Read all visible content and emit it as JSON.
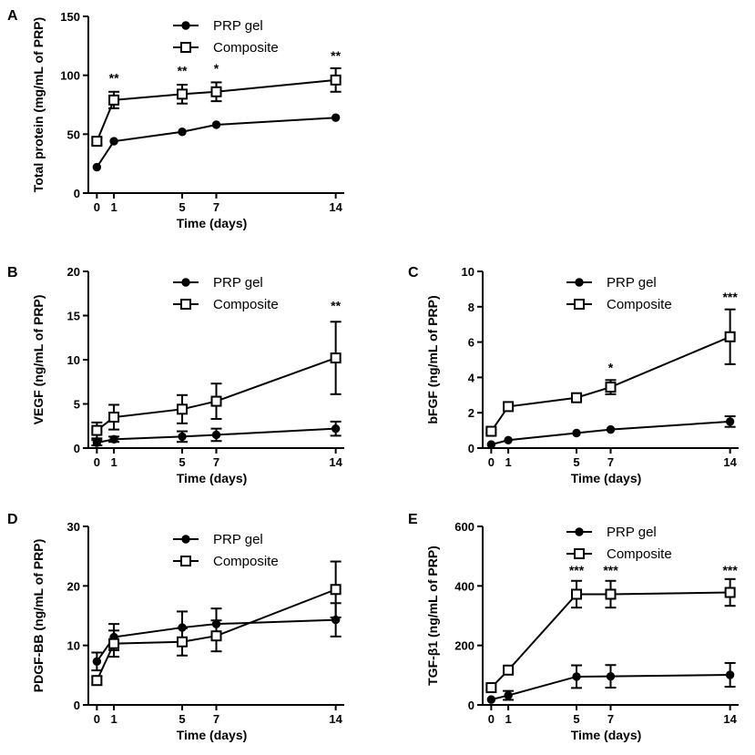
{
  "chart_data": [
    {
      "panel": "A",
      "type": "line",
      "xlabel": "Time (days)",
      "ylabel": "Total protein (mg/mL of PRP)",
      "x": [
        0,
        1,
        5,
        7,
        14
      ],
      "xticks": [
        "0",
        "1",
        "5",
        "7",
        "14"
      ],
      "xlim": [
        -0.5,
        14.5
      ],
      "ylim": [
        0,
        150
      ],
      "yticks": [
        0,
        50,
        100,
        150
      ],
      "legend_position": "top-center",
      "series": [
        {
          "name": "PRP gel",
          "marker": "circle",
          "values": [
            22,
            44,
            52,
            58,
            64
          ],
          "errors": [
            1,
            1,
            1,
            1,
            1
          ]
        },
        {
          "name": "Composite",
          "marker": "square",
          "values": [
            44,
            79,
            84,
            86,
            96
          ],
          "errors": [
            3,
            7,
            8,
            8,
            10
          ]
        }
      ],
      "significance": [
        {
          "x": 1,
          "label": "**",
          "y": 94
        },
        {
          "x": 5,
          "label": "**",
          "y": 100
        },
        {
          "x": 7,
          "label": "*",
          "y": 102
        },
        {
          "x": 14,
          "label": "**",
          "y": 113
        }
      ]
    },
    {
      "panel": "B",
      "type": "line",
      "xlabel": "Time (days)",
      "ylabel": "VEGF (ng/mL of PRP)",
      "x": [
        0,
        1,
        5,
        7,
        14
      ],
      "xticks": [
        "0",
        "1",
        "5",
        "7",
        "14"
      ],
      "xlim": [
        -0.5,
        14.5
      ],
      "ylim": [
        0,
        20
      ],
      "yticks": [
        0,
        5,
        10,
        15,
        20
      ],
      "legend_position": "top-center",
      "series": [
        {
          "name": "PRP gel",
          "marker": "circle",
          "values": [
            0.6,
            1.0,
            1.3,
            1.5,
            2.2
          ],
          "errors": [
            0.3,
            0.3,
            0.6,
            0.7,
            0.8
          ]
        },
        {
          "name": "Composite",
          "marker": "square",
          "values": [
            2.0,
            3.5,
            4.4,
            5.3,
            10.2
          ],
          "errors": [
            0.9,
            1.4,
            1.6,
            2.0,
            4.1
          ]
        }
      ],
      "significance": [
        {
          "x": 14,
          "label": "**",
          "y": 15.6
        }
      ]
    },
    {
      "panel": "C",
      "type": "line",
      "xlabel": "Time (days)",
      "ylabel": "bFGF (ng/mL of PRP)",
      "x": [
        0,
        1,
        5,
        7,
        14
      ],
      "xticks": [
        "0",
        "1",
        "5",
        "7",
        "14"
      ],
      "xlim": [
        -0.5,
        14.5
      ],
      "ylim": [
        0,
        10
      ],
      "yticks": [
        0,
        2,
        4,
        6,
        8,
        10
      ],
      "legend_position": "top-center",
      "series": [
        {
          "name": "PRP gel",
          "marker": "circle",
          "values": [
            0.2,
            0.45,
            0.85,
            1.05,
            1.5
          ],
          "errors": [
            0.05,
            0.05,
            0.05,
            0.05,
            0.3
          ]
        },
        {
          "name": "Composite",
          "marker": "square",
          "values": [
            0.95,
            2.35,
            2.85,
            3.45,
            6.3
          ],
          "errors": [
            0.1,
            0.15,
            0.2,
            0.4,
            1.55
          ]
        }
      ],
      "significance": [
        {
          "x": 7,
          "label": "*",
          "y": 4.3
        },
        {
          "x": 14,
          "label": "***",
          "y": 8.3
        }
      ]
    },
    {
      "panel": "D",
      "type": "line",
      "xlabel": "Time (days)",
      "ylabel": "PDGF-BB (ng/mL of PRP)",
      "x": [
        0,
        1,
        5,
        7,
        14
      ],
      "xticks": [
        "0",
        "1",
        "5",
        "7",
        "14"
      ],
      "xlim": [
        -0.5,
        14.5
      ],
      "ylim": [
        0,
        30
      ],
      "yticks": [
        0,
        10,
        20,
        30
      ],
      "legend_position": "top-center",
      "series": [
        {
          "name": "PRP gel",
          "marker": "circle",
          "values": [
            7.3,
            11.4,
            13.0,
            13.6,
            14.3
          ],
          "errors": [
            1.5,
            2.2,
            2.7,
            2.6,
            2.8
          ]
        },
        {
          "name": "Composite",
          "marker": "square",
          "values": [
            4.1,
            10.3,
            10.6,
            11.6,
            19.4
          ],
          "errors": [
            0.7,
            2.2,
            2.3,
            2.6,
            4.7
          ]
        }
      ],
      "significance": []
    },
    {
      "panel": "E",
      "type": "line",
      "xlabel": "Time (days)",
      "ylabel": "TGF-β1 (ng/mL of PRP)",
      "x": [
        0,
        1,
        5,
        7,
        14
      ],
      "xticks": [
        "0",
        "1",
        "5",
        "7",
        "14"
      ],
      "xlim": [
        -0.5,
        14.5
      ],
      "ylim": [
        0,
        600
      ],
      "yticks": [
        0,
        200,
        400,
        600
      ],
      "legend_position": "top-center",
      "series": [
        {
          "name": "PRP gel",
          "marker": "circle",
          "values": [
            18,
            32,
            95,
            96,
            101
          ],
          "errors": [
            4,
            15,
            38,
            38,
            40
          ]
        },
        {
          "name": "Composite",
          "marker": "square",
          "values": [
            58,
            117,
            372,
            372,
            378
          ],
          "errors": [
            4,
            7,
            45,
            45,
            45
          ]
        }
      ],
      "significance": [
        {
          "x": 5,
          "label": "***",
          "y": 437
        },
        {
          "x": 7,
          "label": "***",
          "y": 437
        },
        {
          "x": 14,
          "label": "***",
          "y": 437
        }
      ]
    }
  ]
}
